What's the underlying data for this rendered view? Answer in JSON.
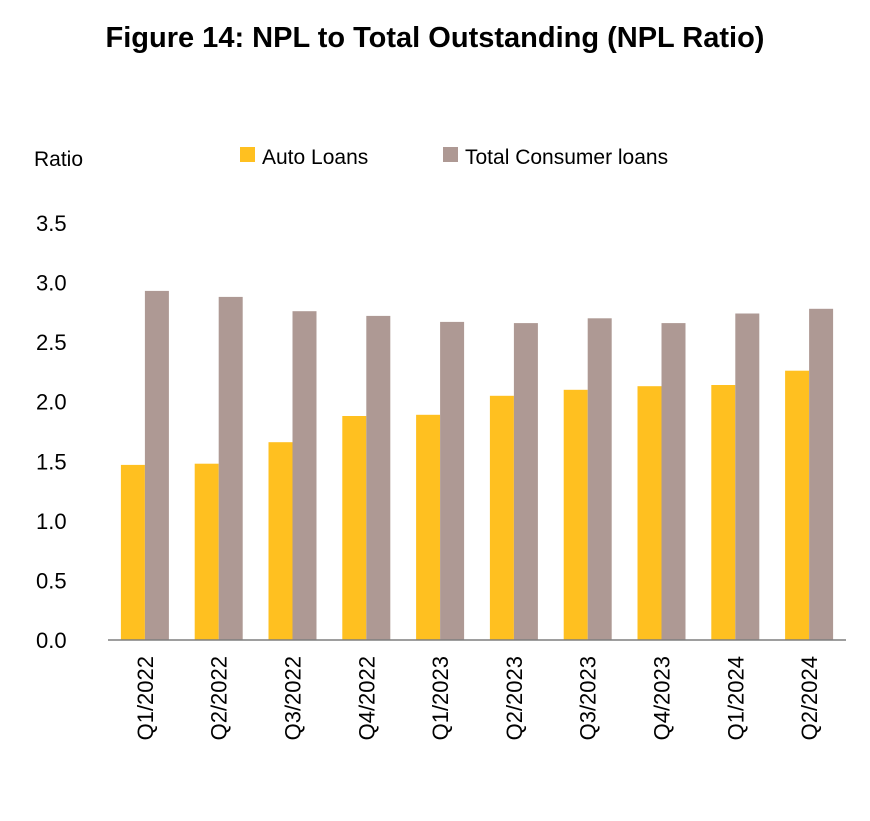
{
  "chart_data": {
    "type": "bar",
    "title": "Figure 14: NPL to Total Outstanding (NPL Ratio)",
    "ylabel": "Ratio",
    "xlabel": "",
    "ylim": [
      0,
      3.5
    ],
    "yticks": [
      "0.0",
      "0.5",
      "1.0",
      "1.5",
      "2.0",
      "2.5",
      "3.0",
      "3.5"
    ],
    "grid": false,
    "legend_position": "top",
    "categories": [
      "Q1/2022",
      "Q2/2022",
      "Q3/2022",
      "Q4/2022",
      "Q1/2023",
      "Q2/2023",
      "Q3/2023",
      "Q4/2023",
      "Q1/2024",
      "Q2/2024"
    ],
    "series": [
      {
        "name": "Auto Loans",
        "color": "#FFC020",
        "values": [
          1.47,
          1.48,
          1.66,
          1.88,
          1.89,
          2.05,
          2.1,
          2.13,
          2.14,
          2.26
        ]
      },
      {
        "name": "Total Consumer loans",
        "color": "#AE9994",
        "values": [
          2.93,
          2.88,
          2.76,
          2.72,
          2.67,
          2.66,
          2.7,
          2.66,
          2.74,
          2.78
        ]
      }
    ]
  }
}
